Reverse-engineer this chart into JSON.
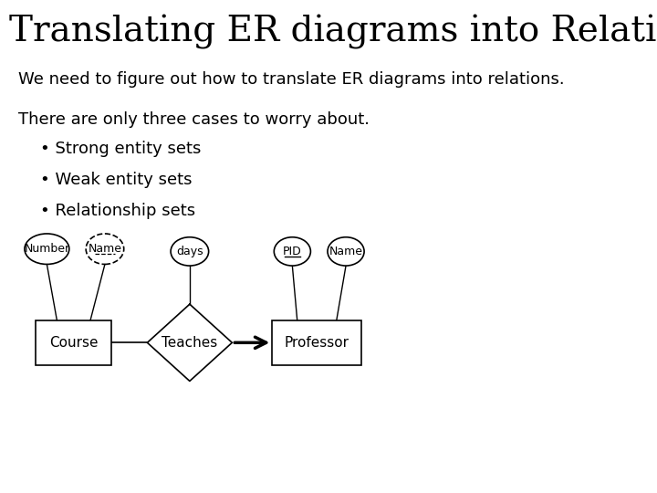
{
  "title": "Translating ER diagrams into Relations",
  "subtitle": "We need to figure out how to translate ER diagrams into relations.",
  "body_line1": "There are only three cases to worry about.",
  "bullets": [
    "• Strong entity sets",
    "• Weak entity sets",
    "• Relationship sets"
  ],
  "bg_color": "#ffffff",
  "text_color": "#000000",
  "title_fontsize": 28,
  "subtitle_fontsize": 13,
  "body_fontsize": 13
}
